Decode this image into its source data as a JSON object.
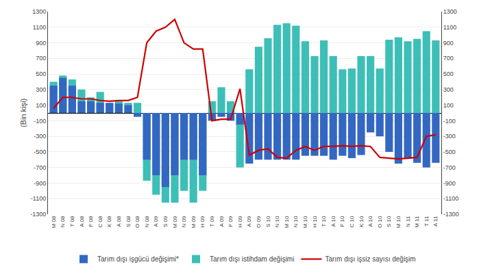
{
  "chart_data": {
    "type": "bar",
    "categories": [
      "M 08",
      "N 08",
      "T 08",
      "A 08",
      "F 08",
      "C 08",
      "K 08",
      "A 08",
      "S 08",
      "O 08",
      "N 08",
      "A 09",
      "S 09",
      "M 09",
      "N 09",
      "M 09",
      "H 09",
      "T 09",
      "A 09",
      "F 09",
      "H 09",
      "A 09",
      "O 09",
      "S 10",
      "N 10",
      "M 10",
      "N 10",
      "M 10",
      "H 10",
      "T 10",
      "A 10",
      "F 10",
      "C 10",
      "K 10",
      "A 10",
      "O 10",
      "S 10",
      "M 10",
      "N 11",
      "M 11",
      "T 11",
      "A 11"
    ],
    "series": [
      {
        "name": "Tarım dışı istihdam değişimi",
        "color": "#3DBFB8",
        "type": "bar",
        "values": [
          400,
          480,
          430,
          300,
          200,
          270,
          120,
          150,
          130,
          130,
          -870,
          -1050,
          -1150,
          -1150,
          -1000,
          -1150,
          -1000,
          150,
          330,
          150,
          -700,
          560,
          850,
          960,
          1130,
          1150,
          1120,
          920,
          730,
          930,
          730,
          560,
          570,
          730,
          730,
          570,
          940,
          970,
          920,
          950,
          1050,
          930
        ]
      },
      {
        "name": "Tarım dışı işgücü değişimi*",
        "color": "#3467C2",
        "type": "bar",
        "values": [
          350,
          450,
          350,
          150,
          150,
          130,
          130,
          120,
          100,
          -50,
          -600,
          -800,
          -950,
          -800,
          -600,
          -600,
          -800,
          -100,
          -50,
          -100,
          -150,
          -650,
          -600,
          -600,
          -600,
          -600,
          -600,
          -550,
          -550,
          -550,
          -600,
          -550,
          -580,
          -540,
          -250,
          -300,
          -500,
          -650,
          -590,
          -640,
          -700,
          -640
        ]
      },
      {
        "name": "Tarım dışı işsiz sayısı değişim",
        "color": "#CC0000",
        "type": "line",
        "values": [
          60,
          200,
          200,
          180,
          180,
          160,
          150,
          160,
          160,
          200,
          900,
          1050,
          1100,
          1200,
          900,
          820,
          820,
          -100,
          -80,
          -80,
          310,
          -540,
          -480,
          -460,
          -570,
          -580,
          -480,
          -430,
          -480,
          -430,
          -430,
          -420,
          -430,
          -420,
          -430,
          -570,
          -580,
          -590,
          -580,
          -570,
          -300,
          -280
        ]
      }
    ],
    "ylabel": "(Bin kişi)",
    "ylim": [
      -1300,
      1300
    ],
    "yticks": [
      -1300,
      -1100,
      -900,
      -700,
      -500,
      -300,
      -100,
      100,
      300,
      500,
      700,
      900,
      1100,
      1300
    ],
    "y2lim": [
      -1300,
      1300
    ],
    "y2ticks": [
      -1300,
      -1100,
      -900,
      -700,
      -500,
      -300,
      -100,
      100,
      300,
      500,
      700,
      900,
      1100,
      1300
    ],
    "grid": true,
    "legend": "bottom"
  }
}
